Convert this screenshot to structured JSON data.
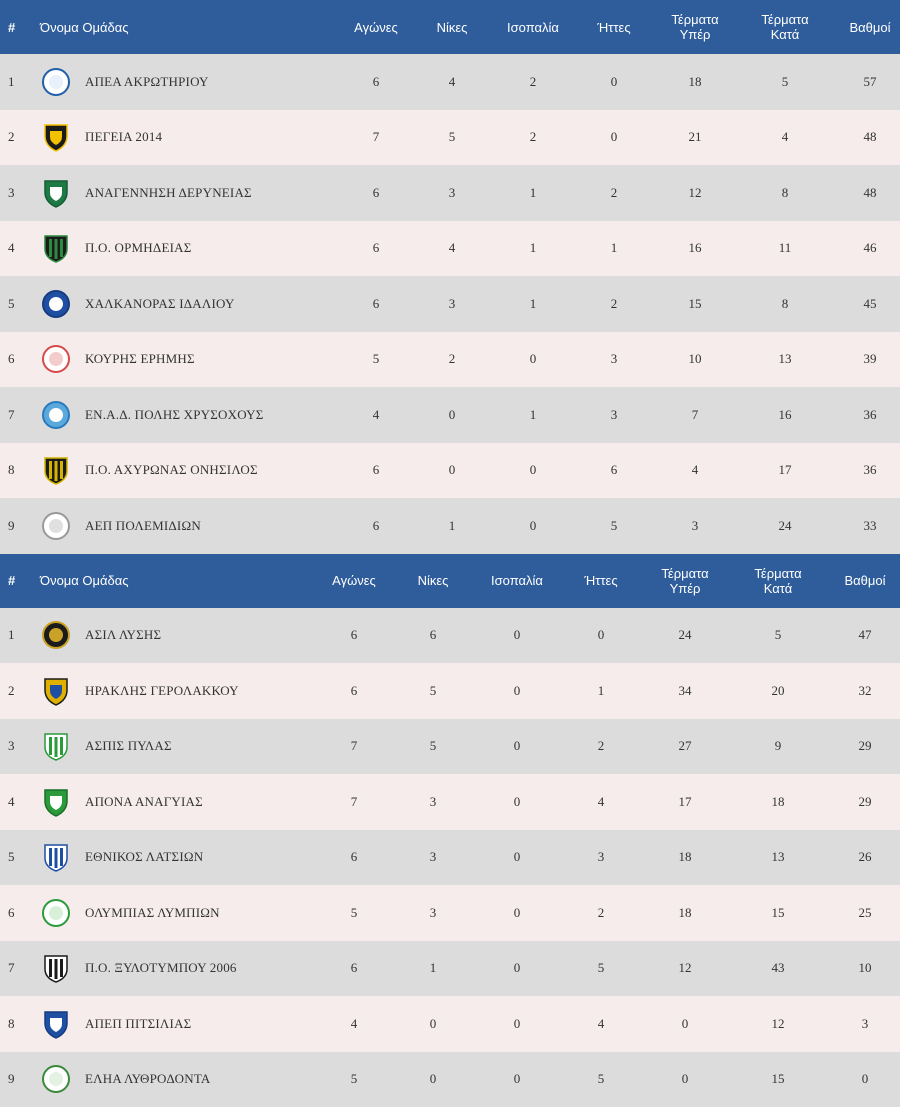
{
  "colors": {
    "header_bg": "#2f5d9b",
    "row_odd": "#dcdcdc",
    "row_even": "#f6ecec"
  },
  "tables": [
    {
      "headers": {
        "num": "#",
        "team": "Όνομα Ομάδας",
        "played": "Αγώνες",
        "wins": "Νίκες",
        "draws": "Ισοπαλία",
        "losses": "Ήττες",
        "gf_line1": "Τέρματα",
        "gf_line2": "Υπέρ",
        "ga_line1": "Τέρματα",
        "ga_line2": "Κατά",
        "points": "Βαθμοί"
      },
      "rows": [
        {
          "pos": "1",
          "team": "ΑΠΕΑ ΑΚΡΩΤΗΡΙΟΥ",
          "logo": "apea-akrotiriou-logo",
          "played": "6",
          "wins": "4",
          "draws": "2",
          "losses": "0",
          "gf": "18",
          "ga": "5",
          "points": "57"
        },
        {
          "pos": "2",
          "team": "ΠΕΓΕΙΑ 2014",
          "logo": "pegeia-2014-logo",
          "played": "7",
          "wins": "5",
          "draws": "2",
          "losses": "0",
          "gf": "21",
          "ga": "4",
          "points": "48"
        },
        {
          "pos": "3",
          "team": "ΑΝΑΓΕΝΝΗΣΗ ΔΕΡΥΝΕΙΑΣ",
          "logo": "anagennisi-deryneias-logo",
          "played": "6",
          "wins": "3",
          "draws": "1",
          "losses": "2",
          "gf": "12",
          "ga": "8",
          "points": "48"
        },
        {
          "pos": "4",
          "team": "Π.Ο. ΟΡΜΗΔΕΙΑΣ",
          "logo": "po-ormideias-logo",
          "played": "6",
          "wins": "4",
          "draws": "1",
          "losses": "1",
          "gf": "16",
          "ga": "11",
          "points": "46"
        },
        {
          "pos": "5",
          "team": "ΧΑΛΚΑΝΟΡΑΣ ΙΔΑΛΙΟΥ",
          "logo": "chalkanoras-idaliou-logo",
          "played": "6",
          "wins": "3",
          "draws": "1",
          "losses": "2",
          "gf": "15",
          "ga": "8",
          "points": "45"
        },
        {
          "pos": "6",
          "team": "ΚΟΥΡΗΣ ΕΡΗΜΗΣ",
          "logo": "kouris-erimis-logo",
          "played": "5",
          "wins": "2",
          "draws": "0",
          "losses": "3",
          "gf": "10",
          "ga": "13",
          "points": "39"
        },
        {
          "pos": "7",
          "team": "ΕΝ.Α.Δ. ΠΟΛΗΣ ΧΡΥΣΟΧΟΥΣ",
          "logo": "enad-polis-logo",
          "played": "4",
          "wins": "0",
          "draws": "1",
          "losses": "3",
          "gf": "7",
          "ga": "16",
          "points": "36"
        },
        {
          "pos": "8",
          "team": "Π.Ο. ΑΧΥΡΩΝΑΣ ΟΝΗΣΙΛΟΣ",
          "logo": "achyronas-onisilos-logo",
          "played": "6",
          "wins": "0",
          "draws": "0",
          "losses": "6",
          "gf": "4",
          "ga": "17",
          "points": "36"
        },
        {
          "pos": "9",
          "team": "ΑΕΠ ΠΟΛΕΜΙΔΙΩΝ",
          "logo": "aep-polemidion-logo",
          "played": "6",
          "wins": "1",
          "draws": "0",
          "losses": "5",
          "gf": "3",
          "ga": "24",
          "points": "33"
        }
      ]
    },
    {
      "headers": {
        "num": "#",
        "team": "Όνομα Ομάδας",
        "played": "Αγώνες",
        "wins": "Νίκες",
        "draws": "Ισοπαλία",
        "losses": "Ήττες",
        "gf_line1": "Τέρματα",
        "gf_line2": "Υπέρ",
        "ga_line1": "Τέρματα",
        "ga_line2": "Κατά",
        "points": "Βαθμοί"
      },
      "rows": [
        {
          "pos": "1",
          "team": "ΑΣΙΛ ΛΥΣΗΣ",
          "logo": "asil-lysis-logo",
          "played": "6",
          "wins": "6",
          "draws": "0",
          "losses": "0",
          "gf": "24",
          "ga": "5",
          "points": "47"
        },
        {
          "pos": "2",
          "team": "ΗΡΑΚΛΗΣ ΓΕΡΟΛΑΚΚΟΥ",
          "logo": "iraklis-gerolakkou-logo",
          "played": "6",
          "wins": "5",
          "draws": "0",
          "losses": "1",
          "gf": "34",
          "ga": "20",
          "points": "32"
        },
        {
          "pos": "3",
          "team": "ΑΣΠΙΣ ΠΥΛΑΣ",
          "logo": "aspis-pylas-logo",
          "played": "7",
          "wins": "5",
          "draws": "0",
          "losses": "2",
          "gf": "27",
          "ga": "9",
          "points": "29"
        },
        {
          "pos": "4",
          "team": "ΑΠΟΝΑ ΑΝΑΓΥΙΑΣ",
          "logo": "apona-anagyias-logo",
          "played": "7",
          "wins": "3",
          "draws": "0",
          "losses": "4",
          "gf": "17",
          "ga": "18",
          "points": "29"
        },
        {
          "pos": "5",
          "team": "ΕΘΝΙΚΟΣ ΛΑΤΣΙΩΝ",
          "logo": "ethnikos-latsion-logo",
          "played": "6",
          "wins": "3",
          "draws": "0",
          "losses": "3",
          "gf": "18",
          "ga": "13",
          "points": "26"
        },
        {
          "pos": "6",
          "team": "ΟΛΥΜΠΙΑΣ ΛΥΜΠΙΩΝ",
          "logo": "olympias-lympion-logo",
          "played": "5",
          "wins": "3",
          "draws": "0",
          "losses": "2",
          "gf": "18",
          "ga": "15",
          "points": "25"
        },
        {
          "pos": "7",
          "team": "Π.Ο. ΞΥΛΟΤΥΜΠΟΥ 2006",
          "logo": "po-xylotymbou-logo",
          "played": "6",
          "wins": "1",
          "draws": "0",
          "losses": "5",
          "gf": "12",
          "ga": "43",
          "points": "10"
        },
        {
          "pos": "8",
          "team": "ΑΠΕΠ ΠΙΤΣΙΛΙΑΣ",
          "logo": "apep-pitsilias-logo",
          "played": "4",
          "wins": "0",
          "draws": "0",
          "losses": "4",
          "gf": "0",
          "ga": "12",
          "points": "3"
        },
        {
          "pos": "9",
          "team": "ΕΛΗΑ ΛΥΘΡΟΔΟΝΤΑ",
          "logo": "elia-lythrodonta-logo",
          "played": "5",
          "wins": "0",
          "draws": "0",
          "losses": "5",
          "gf": "0",
          "ga": "15",
          "points": "0"
        }
      ]
    }
  ]
}
